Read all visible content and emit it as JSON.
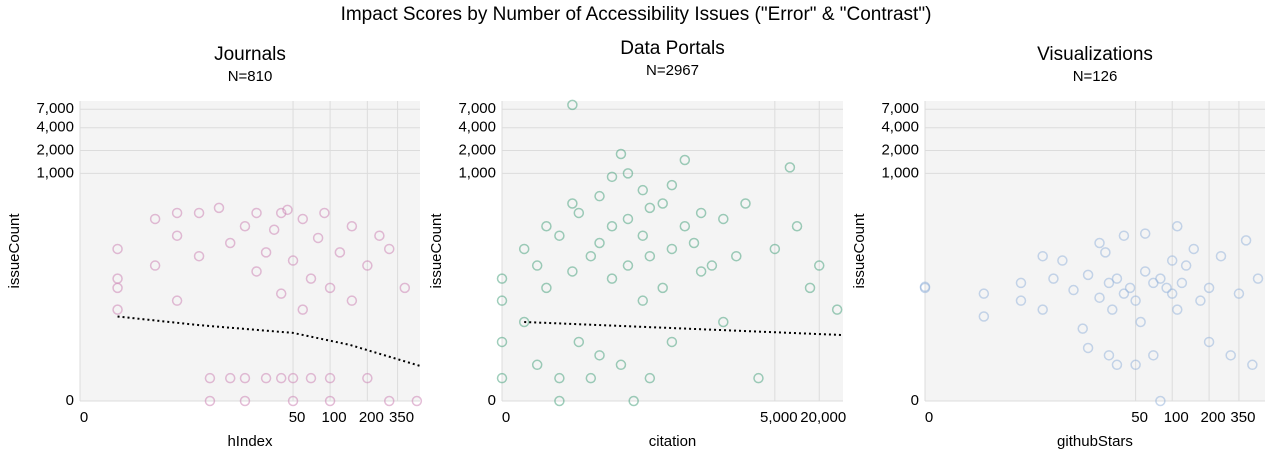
{
  "title": "Impact Scores by Number of Accessibility Issues (\"Error\" & \"Contrast\")",
  "chart_data": [
    {
      "type": "scatter",
      "title": "Journals",
      "subtitle": "N=810",
      "x_label": "hIndex",
      "y_label": "issueCount",
      "xscale": "symlog",
      "yscale": "symlog",
      "grid": true,
      "color": "#c97bb0",
      "xlim": [
        0,
        530
      ],
      "ylim": [
        0,
        9000
      ],
      "xticks": [
        0,
        50,
        100,
        200,
        350
      ],
      "yticks": [
        0,
        {
          "value": 1000,
          "label": "1,000"
        },
        {
          "value": 2000,
          "label": "2,000"
        },
        {
          "value": 4000,
          "label": "4,000"
        },
        {
          "value": 7000,
          "label": "7,000"
        }
      ],
      "x": [
        1,
        1,
        1,
        1,
        3,
        3,
        5,
        5,
        5,
        8,
        8,
        10,
        10,
        12,
        15,
        15,
        20,
        20,
        20,
        25,
        25,
        30,
        30,
        35,
        40,
        40,
        40,
        45,
        50,
        50,
        50,
        60,
        60,
        70,
        70,
        80,
        90,
        100,
        100,
        100,
        120,
        150,
        150,
        200,
        200,
        250,
        300,
        300,
        400,
        500
      ],
      "values": [
        100,
        40,
        30,
        15,
        250,
        60,
        300,
        150,
        20,
        300,
        80,
        1,
        0,
        350,
        120,
        1,
        200,
        1,
        0,
        300,
        50,
        90,
        1,
        180,
        300,
        25,
        1,
        330,
        70,
        1,
        0,
        250,
        15,
        40,
        1,
        140,
        300,
        30,
        1,
        0,
        90,
        200,
        20,
        60,
        1,
        150,
        100,
        0,
        30,
        0
      ],
      "trend": {
        "x": [
          1,
          8,
          50,
          144,
          530
        ],
        "values": [
          12,
          9,
          6.9,
          4.5,
          1.9
        ]
      }
    },
    {
      "type": "scatter",
      "title": "Data Portals",
      "subtitle": "N=2967",
      "x_label": "citation",
      "y_label": "issueCount",
      "xscale": "symlog",
      "yscale": "symlog",
      "grid": true,
      "color": "#3f9e78",
      "xlim": [
        0,
        42000
      ],
      "ylim": [
        0,
        9000
      ],
      "xticks": [
        0,
        {
          "value": 5000,
          "label": "5,000"
        },
        {
          "value": 20000,
          "label": "20,000"
        }
      ],
      "yticks": [
        0,
        {
          "value": 1000,
          "label": "1,000"
        },
        {
          "value": 2000,
          "label": "2,000"
        },
        {
          "value": 4000,
          "label": "4,000"
        },
        {
          "value": 7000,
          "label": "7,000"
        }
      ],
      "x": [
        0,
        0,
        0,
        0,
        1,
        1,
        2,
        2,
        3,
        3,
        5,
        5,
        5,
        8,
        8,
        8,
        10,
        10,
        15,
        15,
        20,
        20,
        20,
        30,
        30,
        30,
        40,
        40,
        50,
        50,
        50,
        60,
        80,
        80,
        80,
        100,
        100,
        100,
        150,
        150,
        200,
        200,
        200,
        300,
        300,
        400,
        500,
        500,
        700,
        1000,
        1000,
        1500,
        2000,
        3000,
        5000,
        8000,
        10000,
        15000,
        20000,
        35000
      ],
      "values": [
        40,
        20,
        5,
        1,
        100,
        10,
        60,
        2,
        200,
        30,
        150,
        1,
        0,
        8000,
        400,
        50,
        300,
        5,
        80,
        1,
        500,
        120,
        3,
        900,
        200,
        40,
        1800,
        2,
        1000,
        250,
        60,
        0,
        600,
        150,
        20,
        350,
        80,
        1,
        400,
        30,
        700,
        100,
        5,
        1500,
        200,
        120,
        300,
        50,
        60,
        250,
        10,
        80,
        400,
        1,
        100,
        1200,
        200,
        30,
        60,
        15
      ],
      "trend": {
        "x": [
          1,
          42000
        ],
        "values": [
          10,
          6.4
        ]
      }
    },
    {
      "type": "scatter",
      "title": "Visualizations",
      "subtitle": "N=126",
      "x_label": "githubStars",
      "y_label": "issueCount",
      "xscale": "symlog",
      "yscale": "symlog",
      "grid": true,
      "color": "#8fb0d9",
      "xlim": [
        0,
        570
      ],
      "ylim": [
        0,
        9000
      ],
      "xticks": [
        0,
        50,
        100,
        200,
        350
      ],
      "yticks": [
        0,
        {
          "value": 1000,
          "label": "1,000"
        },
        {
          "value": 2000,
          "label": "2,000"
        },
        {
          "value": 4000,
          "label": "4,000"
        },
        {
          "value": 7000,
          "label": "7,000"
        }
      ],
      "x": [
        0,
        0,
        2,
        2,
        5,
        5,
        8,
        8,
        10,
        12,
        15,
        18,
        20,
        20,
        25,
        25,
        28,
        30,
        30,
        32,
        35,
        35,
        40,
        40,
        45,
        50,
        50,
        55,
        60,
        60,
        70,
        70,
        80,
        80,
        90,
        100,
        100,
        110,
        110,
        120,
        130,
        150,
        170,
        200,
        200,
        250,
        300,
        350,
        400,
        450,
        500
      ],
      "values": [
        30,
        31,
        25,
        12,
        35,
        20,
        80,
        15,
        40,
        70,
        28,
        8,
        45,
        4,
        22,
        120,
        90,
        35,
        3,
        15,
        40,
        2,
        150,
        25,
        30,
        20,
        2,
        10,
        50,
        160,
        35,
        3,
        40,
        0,
        30,
        25,
        70,
        200,
        15,
        35,
        60,
        100,
        20,
        30,
        5,
        80,
        3,
        25,
        130,
        2,
        40
      ]
    }
  ]
}
